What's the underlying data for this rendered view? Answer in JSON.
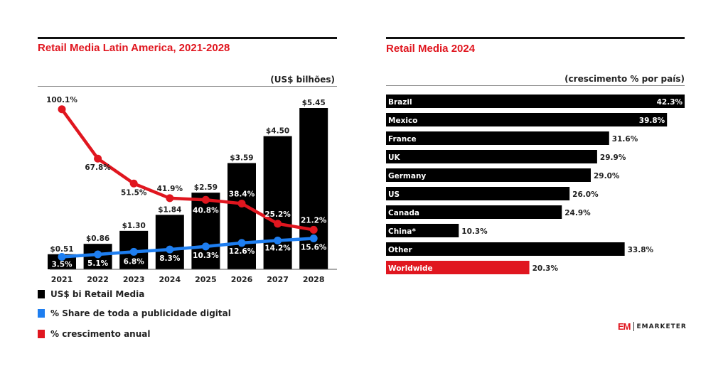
{
  "chart_data": [
    {
      "type": "bar+line",
      "title": "Retail Media  Latin America, 2021-2028",
      "unit_label": "(US$ bilhões)",
      "categories": [
        "2021",
        "2022",
        "2023",
        "2024",
        "2025",
        "2026",
        "2027",
        "2028"
      ],
      "series": [
        {
          "name": "US$ bi  Retail Media",
          "type": "bar",
          "color": "#000000",
          "values": [
            0.51,
            0.86,
            1.3,
            1.84,
            2.59,
            3.59,
            4.5,
            5.45
          ],
          "labels": [
            "$0.51",
            "$0.86",
            "$1.30",
            "$1.84",
            "$2.59",
            "$3.59",
            "$4.50",
            "$5.45"
          ]
        },
        {
          "name": "%  Share de toda a publicidade digital",
          "type": "line",
          "color": "#1e7ef0",
          "values": [
            3.5,
            5.1,
            6.8,
            8.3,
            10.3,
            12.6,
            14.2,
            15.6
          ],
          "labels": [
            "3.5%",
            "5.1%",
            "6.8%",
            "8.3%",
            "10.3%",
            "12.6%",
            "14.2%",
            "15.6%"
          ]
        },
        {
          "name": "% crescimento anual",
          "type": "line",
          "color": "#e0161f",
          "values": [
            100.1,
            67.8,
            51.5,
            41.9,
            40.8,
            38.4,
            25.2,
            21.2
          ],
          "labels": [
            "100.1%",
            "67.8%",
            "51.5%",
            "41.9%",
            "40.8%",
            "38.4%",
            "25.2%",
            "21.2%"
          ]
        }
      ]
    },
    {
      "type": "bar",
      "orientation": "horizontal",
      "title": "Retail Media  2024",
      "unit_label": "(crescimento % por país)",
      "categories": [
        "Brazil",
        "Mexico",
        "France",
        "UK",
        "Germany",
        "US",
        "Canada",
        "China*",
        "Other",
        "Worldwide"
      ],
      "values": [
        42.3,
        39.8,
        31.6,
        29.9,
        29.0,
        26.0,
        24.9,
        10.3,
        33.8,
        20.3
      ],
      "labels": [
        "42.3%",
        "39.8%",
        "31.6%",
        "29.9%",
        "29.0%",
        "26.0%",
        "24.9%",
        "10.3%",
        "33.8%",
        "20.3%"
      ],
      "colors": [
        "#000000",
        "#000000",
        "#000000",
        "#000000",
        "#000000",
        "#000000",
        "#000000",
        "#000000",
        "#000000",
        "#e0161f"
      ]
    }
  ],
  "branding": {
    "mark": "EM",
    "name": "EMARKETER"
  }
}
